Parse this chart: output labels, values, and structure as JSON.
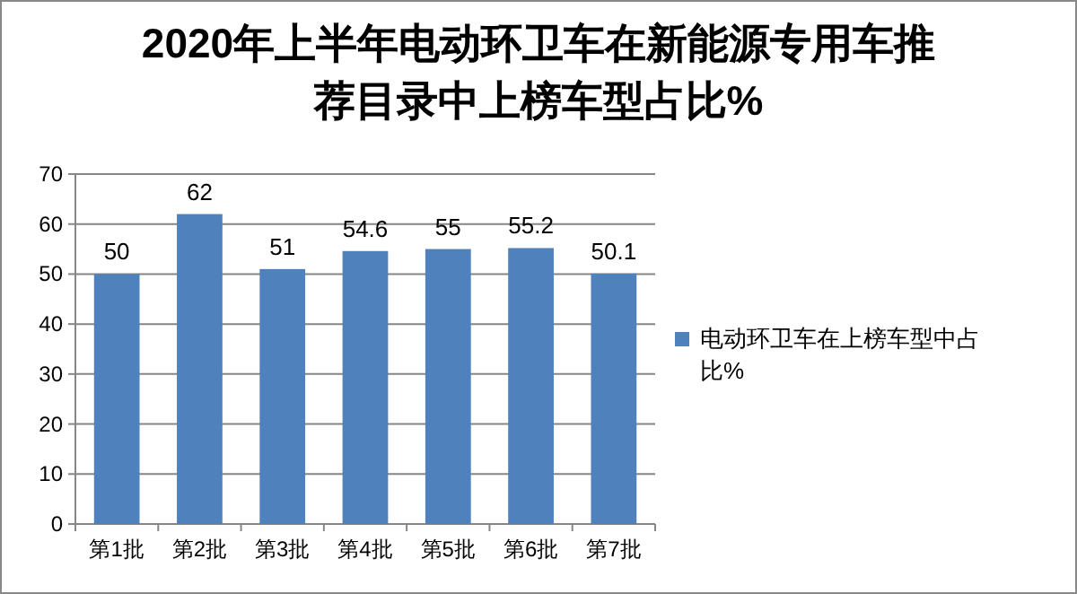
{
  "chart_data": {
    "type": "bar",
    "title": "2020年上半年电动环卫车在新能源专用车推荐目录中上榜车型占比%",
    "categories": [
      "第1批",
      "第2批",
      "第3批",
      "第4批",
      "第5批",
      "第6批",
      "第7批"
    ],
    "series": [
      {
        "name": "电动环卫车在上榜车型中占比%",
        "color": "#4f81bd",
        "values": [
          50,
          62,
          51,
          54.6,
          55,
          55.2,
          50.1
        ]
      }
    ],
    "ylim": [
      0,
      70
    ],
    "yticks": [
      0,
      10,
      20,
      30,
      40,
      50,
      60,
      70
    ],
    "grid": "y",
    "legend": "right",
    "data_labels": true
  }
}
